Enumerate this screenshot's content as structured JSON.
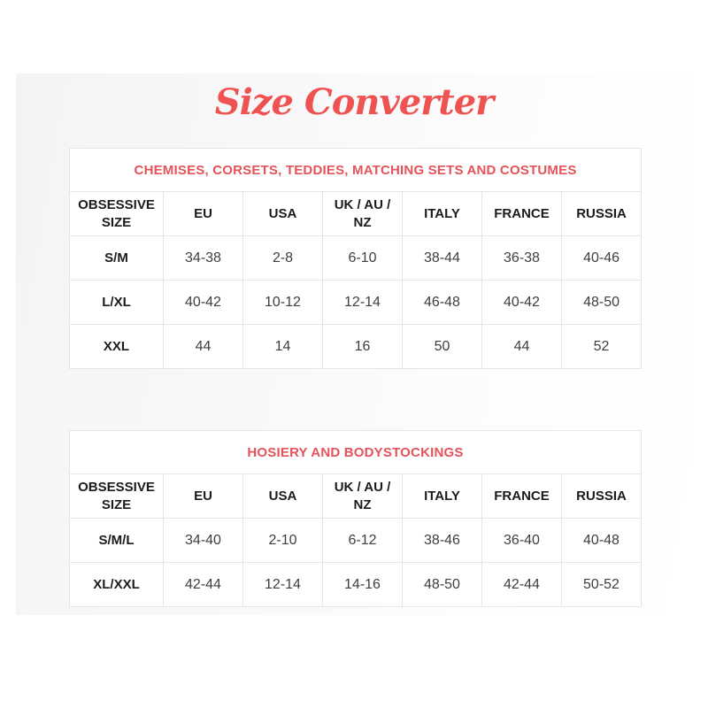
{
  "page_title": "Size Converter",
  "colors": {
    "accent_title": "#ef5351",
    "section_title": "#e5525a",
    "table_border": "#e5e5e7",
    "header_text": "#1b1b1b",
    "cell_text": "#3e3e3e"
  },
  "tables": [
    {
      "title": "CHEMISES, CORSETS, TEDDIES, MATCHING SETS AND COSTUMES",
      "headers": [
        "OBSESSIVE SIZE",
        "EU",
        "USA",
        "UK / AU / NZ",
        "ITALY",
        "FRANCE",
        "RUSSIA"
      ],
      "rows": [
        [
          "S/M",
          "34-38",
          "2-8",
          "6-10",
          "38-44",
          "36-38",
          "40-46"
        ],
        [
          "L/XL",
          "40-42",
          "10-12",
          "12-14",
          "46-48",
          "40-42",
          "48-50"
        ],
        [
          "XXL",
          "44",
          "14",
          "16",
          "50",
          "44",
          "52"
        ]
      ]
    },
    {
      "title": "HOSIERY AND BODYSTOCKINGS",
      "headers": [
        "OBSESSIVE SIZE",
        "EU",
        "USA",
        "UK / AU / NZ",
        "ITALY",
        "FRANCE",
        "RUSSIA"
      ],
      "rows": [
        [
          "S/M/L",
          "34-40",
          "2-10",
          "6-12",
          "38-46",
          "36-40",
          "40-48"
        ],
        [
          "XL/XXL",
          "42-44",
          "12-14",
          "14-16",
          "48-50",
          "42-44",
          "50-52"
        ]
      ]
    }
  ]
}
